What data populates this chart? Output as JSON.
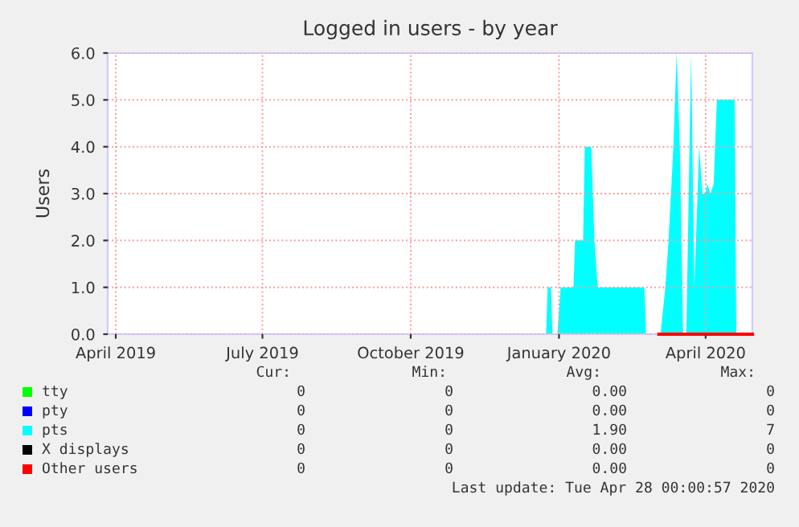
{
  "chart_data": {
    "type": "area",
    "title": "Logged in users - by year",
    "ylabel": "Users",
    "xlim": [
      "2019-03-27",
      "2020-04-30"
    ],
    "xticks": [
      {
        "value": "2019-04-01",
        "label": "April 2019"
      },
      {
        "value": "2019-07-01",
        "label": "July 2019"
      },
      {
        "value": "2019-10-01",
        "label": "October 2019"
      },
      {
        "value": "2020-01-01",
        "label": "January 2020"
      },
      {
        "value": "2020-04-01",
        "label": "April 2020"
      }
    ],
    "ylim": [
      0,
      6
    ],
    "yticks": [
      {
        "value": 0,
        "label": "0.0"
      },
      {
        "value": 1,
        "label": "1.0"
      },
      {
        "value": 2,
        "label": "2.0"
      },
      {
        "value": 3,
        "label": "3.0"
      },
      {
        "value": 4,
        "label": "4.0"
      },
      {
        "value": 5,
        "label": "5.0"
      },
      {
        "value": 6,
        "label": "6.0"
      }
    ],
    "grid": true,
    "legend": "bottom",
    "series": [
      {
        "name": "tty",
        "color": "#00ff00"
      },
      {
        "name": "pty",
        "color": "#0000ff"
      },
      {
        "name": "pts",
        "color": "#00ffff",
        "x": [
          "2019-03-27",
          "2019-12-24",
          "2019-12-25",
          "2019-12-27",
          "2019-12-28",
          "2019-12-31",
          "2020-01-02",
          "2020-01-10",
          "2020-01-11",
          "2020-01-16",
          "2020-01-17",
          "2020-01-21",
          "2020-01-23",
          "2020-01-25",
          "2020-02-23",
          "2020-02-24",
          "2020-03-04",
          "2020-03-07",
          "2020-03-09",
          "2020-03-12",
          "2020-03-14",
          "2020-03-16",
          "2020-03-18",
          "2020-03-20",
          "2020-03-21",
          "2020-03-23",
          "2020-03-25",
          "2020-03-28",
          "2020-03-30",
          "2020-04-01",
          "2020-04-02",
          "2020-04-04",
          "2020-04-06",
          "2020-04-08",
          "2020-04-19",
          "2020-04-20"
        ],
        "values": [
          0,
          0,
          1,
          1,
          0,
          0,
          1,
          1,
          2,
          2,
          4,
          4,
          2,
          1,
          1,
          0,
          0,
          1,
          2,
          4,
          6,
          4,
          0,
          0,
          2,
          6,
          1,
          4,
          3,
          3,
          3.2,
          3,
          3.2,
          5,
          5,
          0
        ]
      },
      {
        "name": "X displays",
        "color": "#000000"
      },
      {
        "name": "Other users",
        "color": "#ff0000",
        "type": "line",
        "x": [
          "2020-03-03",
          "2020-04-30"
        ],
        "values": [
          0,
          0
        ]
      }
    ],
    "annotations": [
      "Cur:",
      "Min:",
      "Avg:",
      "Max:",
      "0",
      "0",
      "0.00",
      "0",
      "0",
      "0",
      "0.00",
      "0",
      "0",
      "0",
      "1.90",
      "7",
      "0",
      "0",
      "0.00",
      "0",
      "0",
      "0",
      "0.00",
      "0",
      "Last update: Tue Apr 28 00:00:57 2020"
    ]
  }
}
